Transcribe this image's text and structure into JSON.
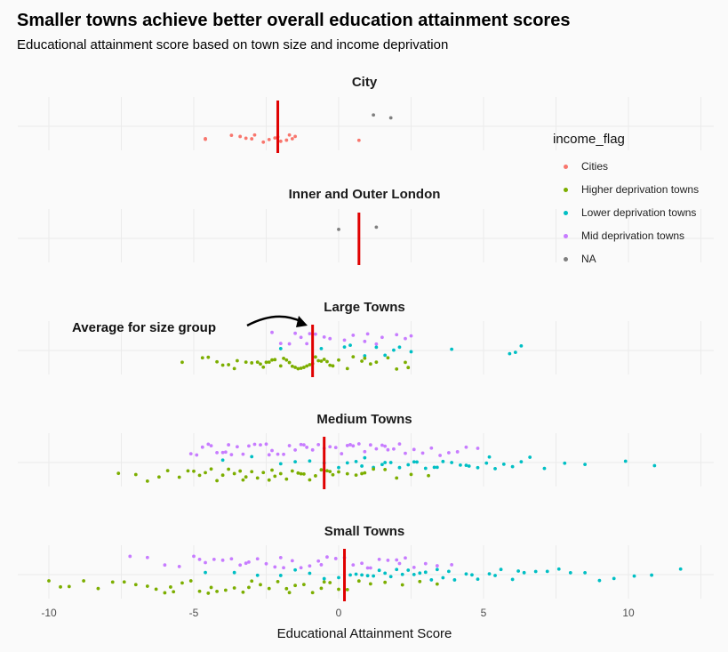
{
  "chart_data": {
    "type": "scatter",
    "title": "Smaller towns achieve better overall education attainment scores",
    "subtitle": "Educational attainment score based on town size and income deprivation",
    "xlabel": "Educational Attainment Score",
    "xlim": [
      -10.8,
      12.6
    ],
    "x_ticks": [
      -10,
      -5,
      0,
      5,
      10
    ],
    "grid": true,
    "legend_title": "income_flag",
    "legend_position": "right",
    "annotation": "Average for size group",
    "facets": [
      {
        "name": "City",
        "mean": -2.1,
        "series": [
          {
            "name": "Cities",
            "values": [
              -4.6,
              -4.6,
              -3.7,
              -3.4,
              -3.2,
              -3.0,
              -2.9,
              -2.6,
              -2.4,
              -2.2,
              -2.1,
              -2.0,
              -1.8,
              -1.7,
              -1.6,
              -1.5,
              0.7
            ]
          },
          {
            "name": "NA",
            "values": [
              1.2,
              1.8
            ]
          }
        ]
      },
      {
        "name": "Inner and Outer London",
        "mean": 0.7,
        "series": [
          {
            "name": "NA",
            "values": [
              0.0,
              1.3
            ]
          }
        ]
      },
      {
        "name": "Large Towns",
        "mean": -0.9,
        "series": [
          {
            "name": "Mid deprivation towns",
            "values": [
              -2.3,
              -2.0,
              -1.7,
              -1.5,
              -1.3,
              -1.1,
              -0.8,
              -0.5,
              -0.3,
              0.2,
              0.5,
              1.0,
              1.3,
              1.5,
              2.0,
              2.3,
              2.5,
              -1.0,
              0.9
            ]
          },
          {
            "name": "Lower deprivation towns",
            "values": [
              -2.0,
              -0.6,
              0.4,
              0.9,
              1.3,
              1.6,
              1.9,
              2.1,
              2.5,
              3.9,
              5.9,
              6.1,
              6.3,
              0.2
            ]
          },
          {
            "name": "Higher deprivation towns",
            "values": [
              -5.4,
              -4.7,
              -4.5,
              -4.2,
              -4.0,
              -3.8,
              -3.6,
              -3.5,
              -3.2,
              -3.0,
              -2.8,
              -2.6,
              -2.5,
              -2.4,
              -2.3,
              -2.2,
              -2.0,
              -1.9,
              -1.8,
              -1.6,
              -1.5,
              -1.4,
              -1.3,
              -1.2,
              -1.1,
              -1.0,
              -0.9,
              -0.8,
              -0.7,
              -0.6,
              -0.5,
              -0.4,
              -0.3,
              -0.2,
              0.0,
              0.3,
              0.5,
              0.8,
              1.1,
              1.3,
              1.7,
              2.0,
              2.3,
              2.4,
              -2.7,
              -1.7,
              0.9
            ]
          }
        ]
      },
      {
        "name": "Medium Towns",
        "mean": -0.5,
        "series": [
          {
            "name": "Mid deprivation towns",
            "values": [
              -5.1,
              -4.9,
              -4.7,
              -4.5,
              -4.4,
              -4.2,
              -4.0,
              -3.9,
              -3.7,
              -3.5,
              -3.3,
              -3.1,
              -2.9,
              -2.7,
              -2.5,
              -2.3,
              -2.1,
              -1.9,
              -1.7,
              -1.5,
              -1.3,
              -1.1,
              -0.9,
              -0.7,
              -0.5,
              -0.3,
              -0.1,
              0.1,
              0.3,
              0.5,
              0.7,
              0.9,
              1.1,
              1.3,
              1.5,
              1.7,
              1.9,
              2.1,
              2.3,
              2.6,
              2.9,
              3.2,
              3.5,
              3.8,
              4.1,
              4.4,
              4.8,
              -3.8,
              -2.4,
              -1.2,
              0.4,
              1.6
            ]
          },
          {
            "name": "Lower deprivation towns",
            "values": [
              -4.0,
              -3.0,
              -2.0,
              -1.5,
              -1.0,
              -0.5,
              0.0,
              0.3,
              0.6,
              0.9,
              1.2,
              1.5,
              1.8,
              2.1,
              2.4,
              2.7,
              3.0,
              3.3,
              3.6,
              3.9,
              4.2,
              4.5,
              4.8,
              5.1,
              5.4,
              5.7,
              6.0,
              6.3,
              6.6,
              7.1,
              7.8,
              8.5,
              9.9,
              10.9,
              0.8,
              1.6,
              2.6,
              3.4,
              4.4,
              5.2
            ]
          },
          {
            "name": "Higher deprivation towns",
            "values": [
              -7.6,
              -7.0,
              -6.6,
              -6.2,
              -5.9,
              -5.5,
              -5.2,
              -5.0,
              -4.8,
              -4.6,
              -4.4,
              -4.2,
              -4.0,
              -3.8,
              -3.6,
              -3.4,
              -3.2,
              -3.0,
              -2.8,
              -2.6,
              -2.4,
              -2.2,
              -2.0,
              -1.8,
              -1.6,
              -1.4,
              -1.2,
              -1.0,
              -0.8,
              -0.6,
              -0.4,
              -0.2,
              0.0,
              0.3,
              0.6,
              0.9,
              1.2,
              1.6,
              2.0,
              2.5,
              3.1,
              -3.3,
              -2.3,
              -1.3,
              -0.3,
              0.8
            ]
          }
        ]
      },
      {
        "name": "Small Towns",
        "mean": 0.2,
        "series": [
          {
            "name": "Mid deprivation towns",
            "values": [
              -7.2,
              -6.6,
              -6.0,
              -5.5,
              -5.0,
              -4.6,
              -4.3,
              -4.0,
              -3.7,
              -3.4,
              -3.1,
              -2.8,
              -2.5,
              -2.2,
              -1.9,
              -1.6,
              -1.3,
              -1.0,
              -0.7,
              -0.4,
              -0.1,
              0.2,
              0.5,
              0.8,
              1.1,
              1.4,
              1.7,
              2.0,
              2.3,
              2.6,
              3.0,
              3.4,
              3.9,
              -4.8,
              -3.2,
              -2.0,
              -0.6,
              1.0,
              2.1
            ]
          },
          {
            "name": "Lower deprivation towns",
            "values": [
              -4.6,
              -3.6,
              -2.8,
              -2.0,
              -1.5,
              -1.0,
              -0.5,
              0.0,
              0.4,
              0.8,
              1.2,
              1.6,
              2.0,
              2.4,
              2.8,
              3.2,
              3.6,
              4.0,
              4.4,
              4.8,
              5.2,
              5.6,
              6.0,
              6.4,
              6.8,
              7.2,
              7.6,
              8.0,
              8.5,
              9.0,
              9.5,
              10.2,
              10.8,
              11.8,
              0.6,
              1.4,
              2.2,
              3.0,
              3.8,
              4.6,
              5.4,
              6.2,
              1.0,
              1.8,
              2.6,
              3.4
            ]
          },
          {
            "name": "Higher deprivation towns",
            "values": [
              -10.0,
              -9.6,
              -9.3,
              -8.8,
              -8.3,
              -7.8,
              -7.4,
              -7.0,
              -6.6,
              -6.3,
              -6.0,
              -5.7,
              -5.4,
              -5.1,
              -4.8,
              -4.5,
              -4.2,
              -3.9,
              -3.6,
              -3.3,
              -3.0,
              -2.7,
              -2.4,
              -2.1,
              -1.8,
              -1.5,
              -1.2,
              -0.9,
              -0.6,
              -0.3,
              0.0,
              0.3,
              0.7,
              1.1,
              1.6,
              2.2,
              2.8,
              3.4,
              -5.8,
              -4.4,
              -3.1,
              -1.7,
              -0.5
            ]
          }
        ]
      }
    ]
  },
  "legend": [
    {
      "label": "Cities",
      "color": "#f8766d"
    },
    {
      "label": "Higher deprivation towns",
      "color": "#7cae00"
    },
    {
      "label": "Lower deprivation towns",
      "color": "#00bfc4"
    },
    {
      "label": "Mid deprivation towns",
      "color": "#c77cff"
    },
    {
      "label": "NA",
      "color": "#7f7f7f"
    }
  ]
}
